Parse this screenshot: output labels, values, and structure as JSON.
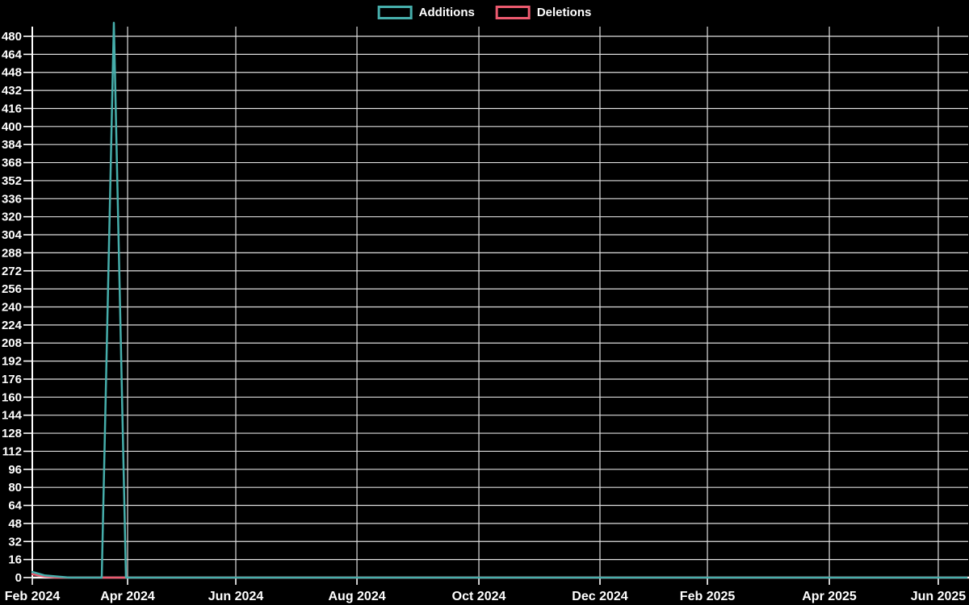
{
  "legend": {
    "items": [
      {
        "label": "Additions",
        "color": "#46aeab"
      },
      {
        "label": "Deletions",
        "color": "#ec5a6f"
      }
    ]
  },
  "chart_data": {
    "type": "line",
    "title": "",
    "background_color": "#000000",
    "text_color": "#ffffff",
    "grid": true,
    "grid_color": "#dedede",
    "axis_color": "#ffffff",
    "legend_position": "top-center",
    "x_axis": {
      "ticks": [
        {
          "label": "Feb 2024",
          "pos": 0.0
        },
        {
          "label": "Apr 2024",
          "pos": 0.102
        },
        {
          "label": "Jun 2024",
          "pos": 0.2178
        },
        {
          "label": "Aug 2024",
          "pos": 0.3475
        },
        {
          "label": "Oct 2024",
          "pos": 0.478
        },
        {
          "label": "Dec 2024",
          "pos": 0.6076
        },
        {
          "label": "Feb 2025",
          "pos": 0.7226
        },
        {
          "label": "Apr 2025",
          "pos": 0.8531
        },
        {
          "label": "Jun 2025",
          "pos": 0.9697
        }
      ]
    },
    "y_axis": {
      "min": 0,
      "max": 480,
      "step": 16
    },
    "series": [
      {
        "name": "Additions",
        "color": "#46aeab",
        "points": [
          [
            0.0,
            5
          ],
          [
            0.013,
            2
          ],
          [
            0.026,
            1
          ],
          [
            0.04,
            0
          ],
          [
            0.0743,
            0
          ],
          [
            0.0873,
            492
          ],
          [
            0.1003,
            0
          ],
          [
            1.0,
            0
          ]
        ]
      },
      {
        "name": "Deletions",
        "color": "#ec5a6f",
        "points": [
          [
            0.0,
            3
          ],
          [
            0.013,
            1
          ],
          [
            0.026,
            0
          ],
          [
            1.0,
            0
          ]
        ]
      }
    ],
    "annotations": "Additions spike peaks at ~492 (above top tick 480) in the week before Apr 2024; small activity (~5 additions, ~3 deletions) at Feb 2024 start; both series flat at 0 elsewhere through Jun 2025."
  }
}
